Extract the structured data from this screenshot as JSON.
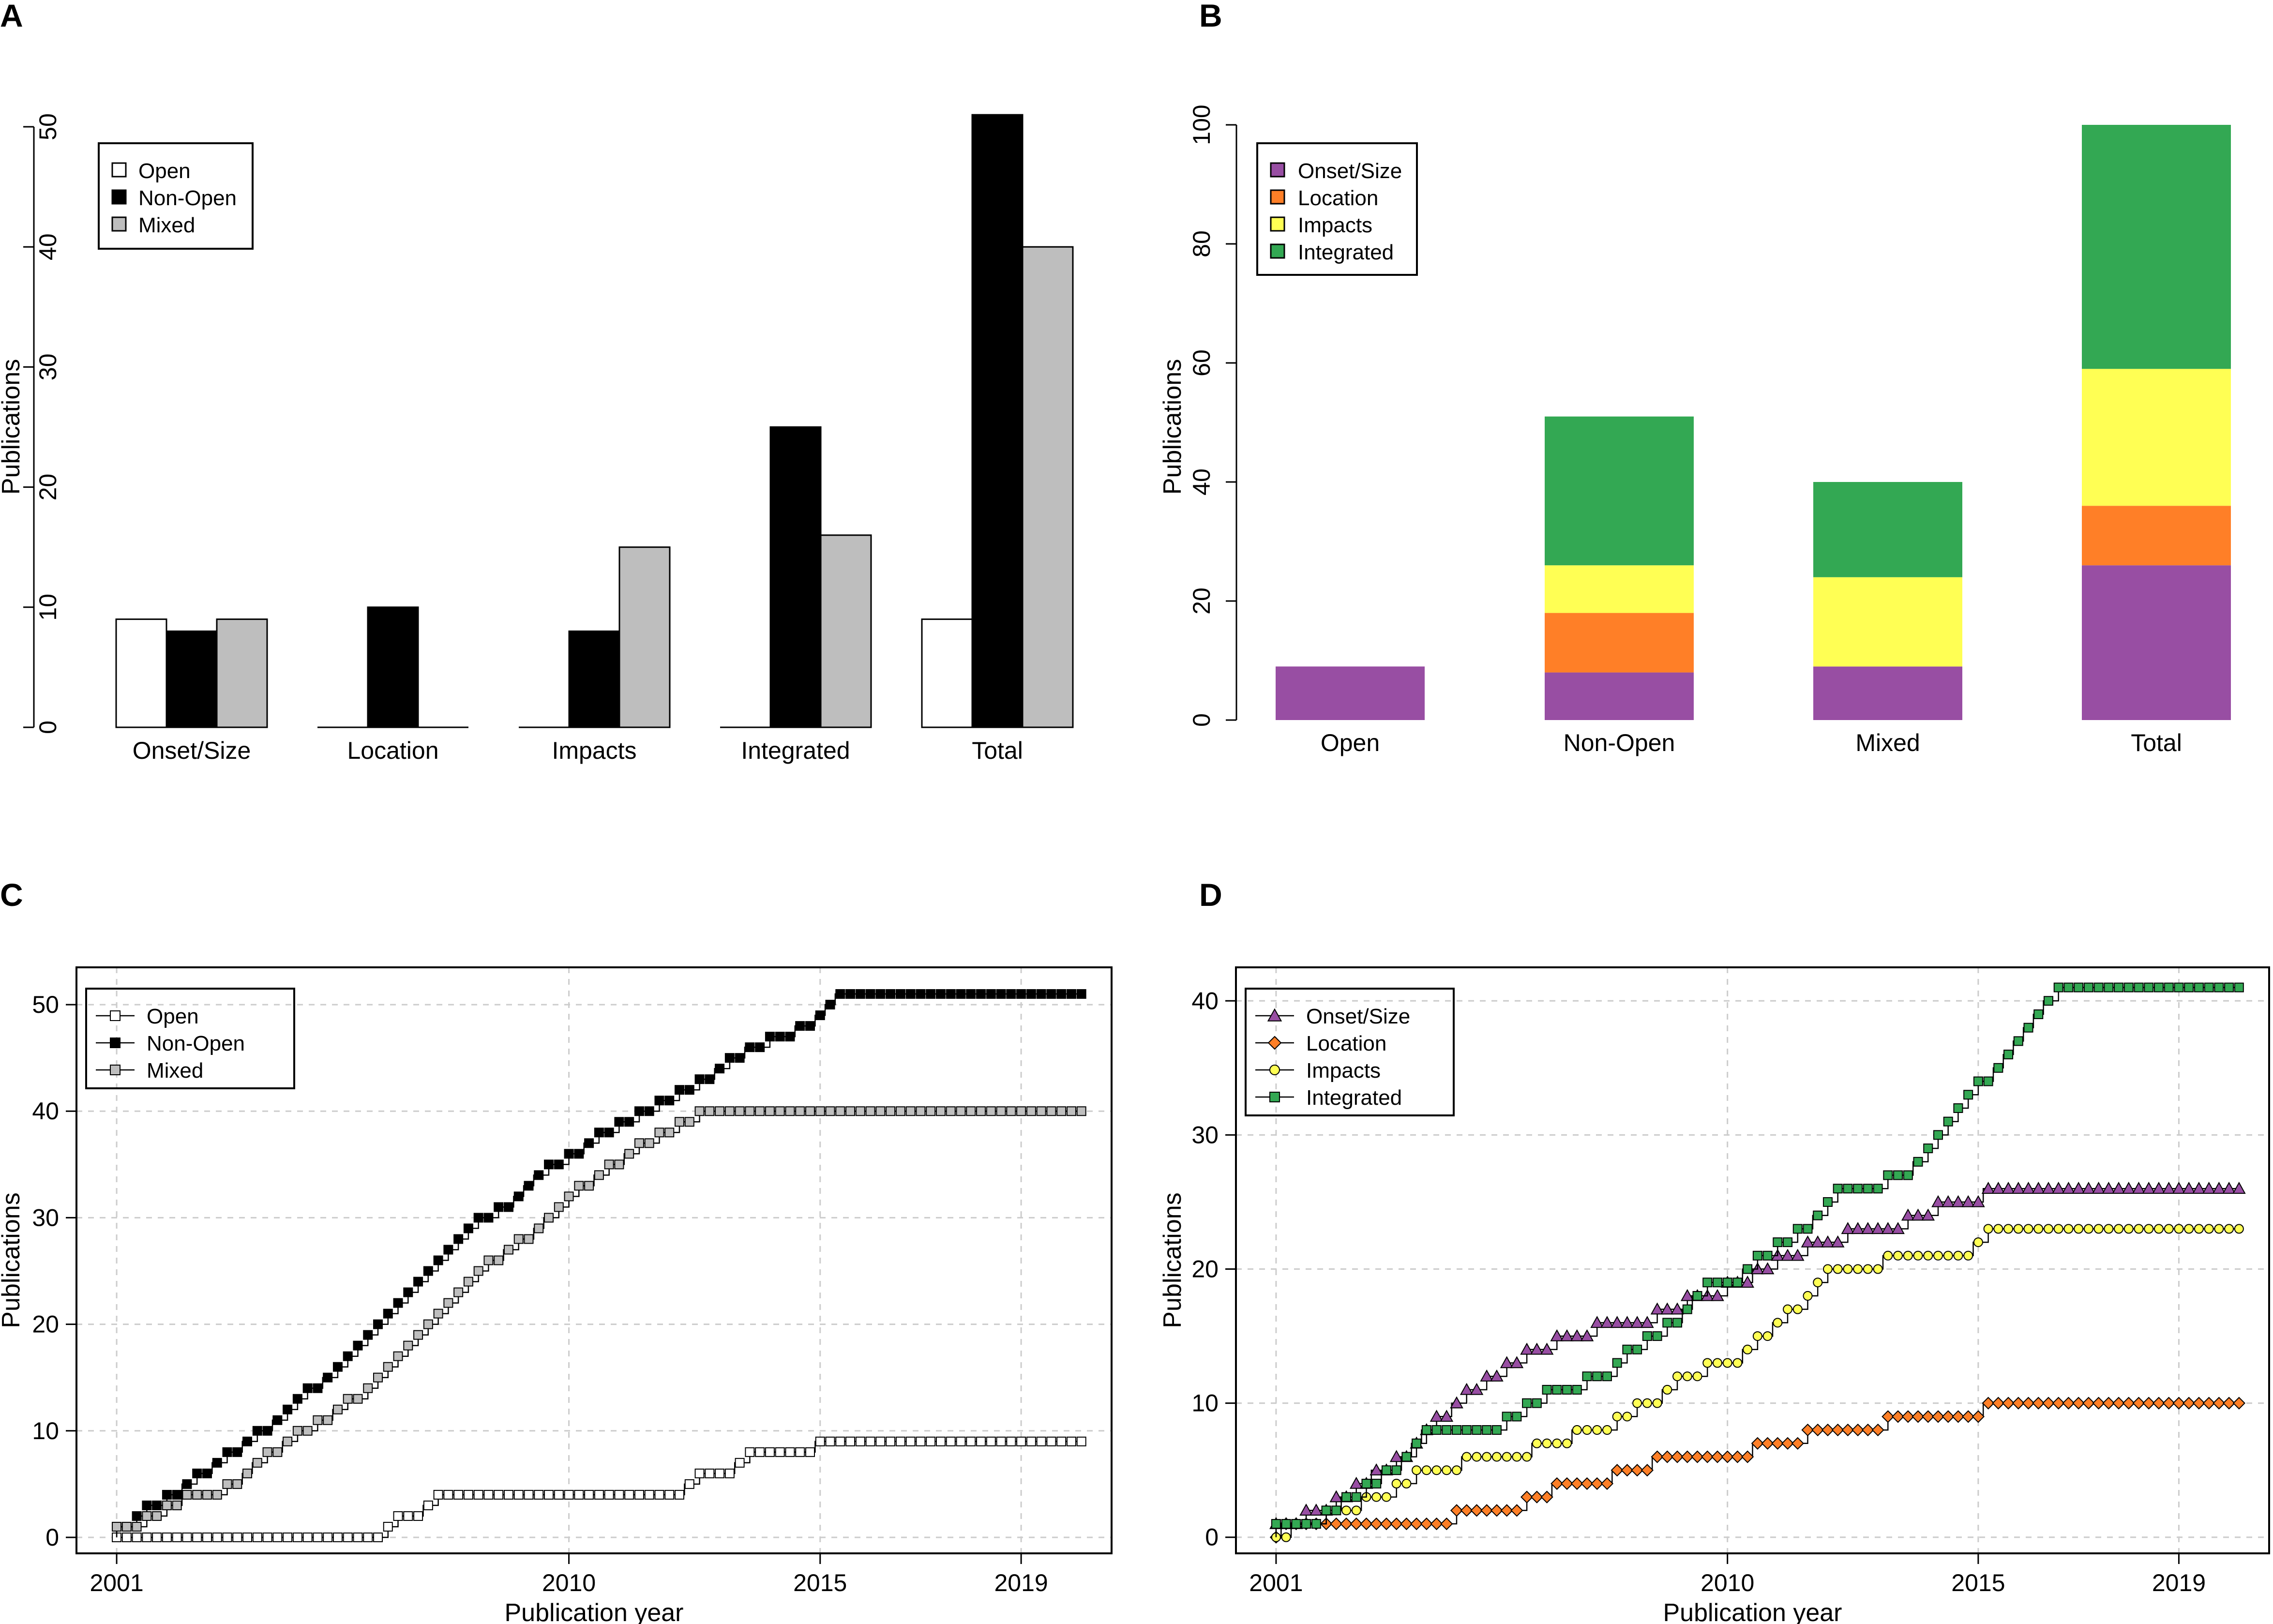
{
  "panels": {
    "A": {
      "label": "A"
    },
    "B": {
      "label": "B"
    },
    "C": {
      "label": "C"
    },
    "D": {
      "label": "D"
    }
  },
  "colors": {
    "open": "#ffffff",
    "nonopen": "#000000",
    "mixed": "#bebebe",
    "onset": "#984ea3",
    "location": "#ff7f27",
    "impacts": "#ffff54",
    "integrated": "#33a853"
  },
  "chart_data": [
    {
      "id": "A",
      "type": "bar",
      "ylabel": "Publications",
      "ylim": [
        0,
        50
      ],
      "yticks": [
        0,
        10,
        20,
        30,
        40,
        50
      ],
      "categories": [
        "Onset/Size",
        "Location",
        "Impacts",
        "Integrated",
        "Total"
      ],
      "series": [
        {
          "name": "Open",
          "color_key": "open",
          "values": [
            9,
            0,
            0,
            0,
            9
          ]
        },
        {
          "name": "Non-Open",
          "color_key": "nonopen",
          "values": [
            8,
            10,
            8,
            25,
            51
          ]
        },
        {
          "name": "Mixed",
          "color_key": "mixed",
          "values": [
            9,
            0,
            15,
            16,
            40
          ]
        }
      ],
      "legend_position": "top-left"
    },
    {
      "id": "B",
      "type": "bar",
      "stacked": true,
      "ylabel": "Publications",
      "ylim": [
        0,
        100
      ],
      "yticks": [
        0,
        20,
        40,
        60,
        80,
        100
      ],
      "categories": [
        "Open",
        "Non-Open",
        "Mixed",
        "Total"
      ],
      "series": [
        {
          "name": "Onset/Size",
          "color_key": "onset",
          "values": [
            9,
            8,
            9,
            26
          ]
        },
        {
          "name": "Location",
          "color_key": "location",
          "values": [
            0,
            10,
            0,
            10
          ]
        },
        {
          "name": "Impacts",
          "color_key": "impacts",
          "values": [
            0,
            8,
            15,
            23
          ]
        },
        {
          "name": "Integrated",
          "color_key": "integrated",
          "values": [
            0,
            25,
            16,
            41
          ]
        }
      ],
      "legend_position": "top-left"
    },
    {
      "id": "C",
      "type": "line",
      "xlabel": "Publication year",
      "ylabel": "Publications",
      "xlim": [
        2000.2,
        2020.8
      ],
      "ylim": [
        -1.5,
        53.5
      ],
      "xticks": [
        2001,
        2010,
        2015,
        2019
      ],
      "yticks": [
        0,
        10,
        20,
        30,
        40,
        50
      ],
      "legend_position": "top-left",
      "series": [
        {
          "name": "Open",
          "marker": "square",
          "color_key": "open",
          "x": [
            2001.0,
            2006.4,
            2006.6,
            2007.1,
            2007.4,
            2012.3,
            2012.6,
            2013.3,
            2013.6,
            2014.9
          ],
          "y": [
            0,
            1,
            2,
            3,
            4,
            5,
            6,
            7,
            8,
            9
          ]
        },
        {
          "name": "Non-Open",
          "marker": "square",
          "color_key": "nonopen",
          "x": [
            2001.0,
            2001.4,
            2001.6,
            2002.0,
            2002.3,
            2002.6,
            2002.9,
            2003.2,
            2003.5,
            2003.8,
            2004.1,
            2004.4,
            2004.6,
            2004.8,
            2005.1,
            2005.4,
            2005.6,
            2005.8,
            2006.0,
            2006.2,
            2006.4,
            2006.6,
            2006.8,
            2007.0,
            2007.2,
            2007.4,
            2007.6,
            2007.8,
            2008.0,
            2008.2,
            2008.6,
            2008.9,
            2009.1,
            2009.3,
            2009.6,
            2010.0,
            2010.3,
            2010.6,
            2011.0,
            2011.4,
            2011.8,
            2012.2,
            2012.6,
            2012.9,
            2013.2,
            2013.5,
            2014.0,
            2014.5,
            2014.9,
            2015.1,
            2015.3
          ],
          "y": [
            1,
            2,
            3,
            4,
            5,
            6,
            7,
            8,
            9,
            10,
            11,
            12,
            13,
            14,
            15,
            16,
            17,
            18,
            19,
            20,
            21,
            22,
            23,
            24,
            25,
            26,
            27,
            28,
            29,
            30,
            31,
            32,
            33,
            34,
            35,
            36,
            37,
            38,
            39,
            40,
            41,
            42,
            43,
            44,
            45,
            46,
            47,
            48,
            49,
            50,
            51
          ]
        },
        {
          "name": "Mixed",
          "marker": "square",
          "color_key": "mixed",
          "x": [
            2001.0,
            2001.6,
            2002.0,
            2002.3,
            2003.2,
            2003.5,
            2003.7,
            2004.0,
            2004.3,
            2004.6,
            2005.0,
            2005.3,
            2005.6,
            2006.0,
            2006.2,
            2006.4,
            2006.6,
            2006.8,
            2007.0,
            2007.2,
            2007.4,
            2007.6,
            2007.8,
            2008.0,
            2008.2,
            2008.4,
            2008.7,
            2009.0,
            2009.3,
            2009.5,
            2009.8,
            2010.0,
            2010.2,
            2010.5,
            2010.8,
            2011.1,
            2011.4,
            2011.8,
            2012.2,
            2012.6
          ],
          "y": [
            1,
            2,
            3,
            4,
            5,
            6,
            7,
            8,
            9,
            10,
            11,
            12,
            13,
            14,
            15,
            16,
            17,
            18,
            19,
            20,
            21,
            22,
            23,
            24,
            25,
            26,
            27,
            28,
            29,
            30,
            31,
            32,
            33,
            34,
            35,
            36,
            37,
            38,
            39,
            40
          ]
        }
      ]
    },
    {
      "id": "D",
      "type": "line",
      "xlabel": "Publication year",
      "ylabel": "Publications",
      "xlim": [
        2000.2,
        2020.8
      ],
      "ylim": [
        -1.2,
        42.5
      ],
      "xticks": [
        2001,
        2010,
        2015,
        2019
      ],
      "yticks": [
        0,
        10,
        20,
        30,
        40
      ],
      "legend_position": "top-left",
      "series": [
        {
          "name": "Onset/Size",
          "marker": "triangle",
          "color_key": "onset",
          "x": [
            2001.0,
            2001.6,
            2002.2,
            2002.6,
            2002.9,
            2003.4,
            2003.7,
            2003.9,
            2004.2,
            2004.5,
            2004.8,
            2005.2,
            2005.6,
            2006.0,
            2006.6,
            2007.4,
            2008.6,
            2009.2,
            2010.0,
            2010.5,
            2011.0,
            2011.6,
            2012.4,
            2013.6,
            2014.2,
            2015.1
          ],
          "y": [
            1,
            2,
            3,
            4,
            5,
            6,
            7,
            8,
            9,
            10,
            11,
            12,
            13,
            14,
            15,
            16,
            17,
            18,
            19,
            20,
            21,
            22,
            23,
            24,
            25,
            26
          ]
        },
        {
          "name": "Location",
          "marker": "diamond",
          "color_key": "location",
          "x": [
            2001.1,
            2004.6,
            2006.0,
            2006.5,
            2007.7,
            2008.5,
            2010.5,
            2011.6,
            2013.2,
            2015.1
          ],
          "y": [
            1,
            2,
            3,
            4,
            5,
            6,
            7,
            8,
            9,
            10
          ]
        },
        {
          "name": "Impacts",
          "marker": "circle",
          "color_key": "impacts",
          "x": [
            2001.3,
            2002.0,
            2002.7,
            2003.4,
            2003.8,
            2004.7,
            2006.1,
            2006.9,
            2007.8,
            2008.2,
            2008.7,
            2009.0,
            2009.6,
            2010.3,
            2010.6,
            2010.9,
            2011.2,
            2011.6,
            2011.8,
            2012.0,
            2013.1,
            2014.9,
            2015.2
          ],
          "y": [
            1,
            2,
            3,
            4,
            5,
            6,
            7,
            8,
            9,
            10,
            11,
            12,
            13,
            14,
            15,
            16,
            17,
            18,
            19,
            20,
            21,
            22,
            23
          ]
        },
        {
          "name": "Integrated",
          "marker": "square",
          "color_key": "integrated",
          "x": [
            2001.0,
            2002.0,
            2002.3,
            2002.8,
            2003.1,
            2003.5,
            2003.8,
            2004.0,
            2005.6,
            2006.0,
            2006.4,
            2007.2,
            2007.8,
            2008.0,
            2008.4,
            2008.8,
            2009.1,
            2009.3,
            2009.6,
            2010.3,
            2010.6,
            2011.0,
            2011.4,
            2011.7,
            2012.0,
            2012.2,
            2013.2,
            2013.7,
            2014.0,
            2014.2,
            2014.4,
            2014.6,
            2014.8,
            2015.0,
            2015.3,
            2015.5,
            2015.7,
            2015.9,
            2016.1,
            2016.3,
            2016.6
          ],
          "y": [
            1,
            2,
            3,
            4,
            5,
            6,
            7,
            8,
            9,
            10,
            11,
            12,
            13,
            14,
            15,
            16,
            17,
            18,
            19,
            20,
            21,
            22,
            23,
            24,
            25,
            26,
            27,
            28,
            29,
            30,
            31,
            32,
            33,
            34,
            35,
            36,
            37,
            38,
            39,
            40,
            41
          ]
        }
      ]
    }
  ]
}
